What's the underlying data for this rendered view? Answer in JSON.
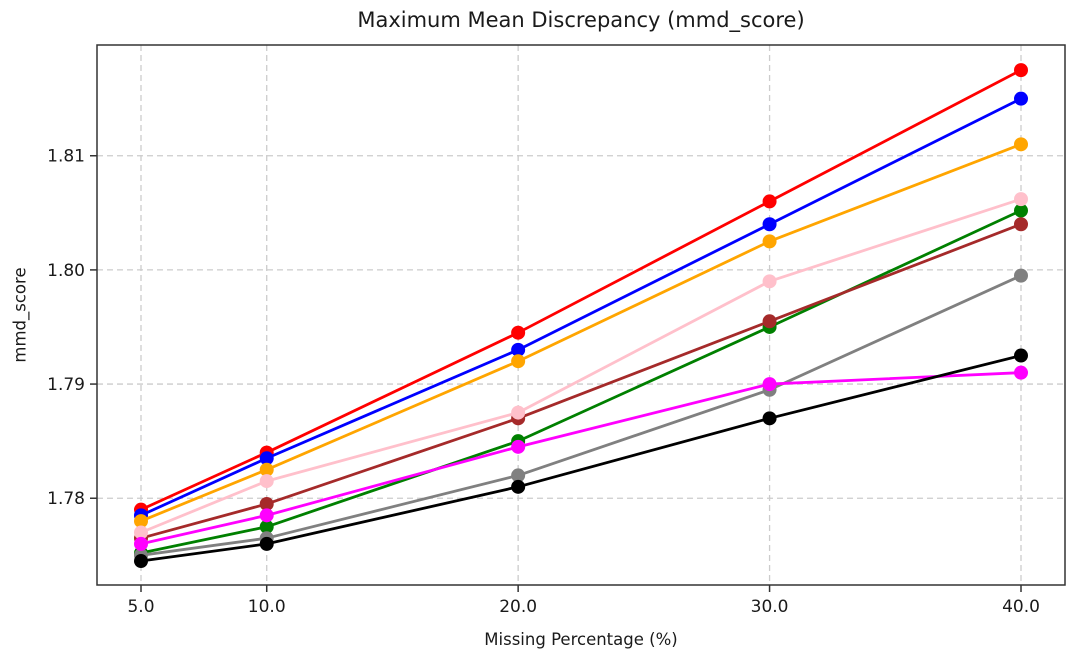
{
  "chart_data": {
    "type": "line",
    "title": "Maximum Mean Discrepancy (mmd_score)",
    "xlabel": "Missing Percentage (%)",
    "ylabel": "mmd_score",
    "x": [
      5.0,
      10.0,
      20.0,
      30.0,
      40.0
    ],
    "xtick_labels": [
      "5.0",
      "10.0",
      "20.0",
      "30.0",
      "40.0"
    ],
    "ytick_values": [
      1.78,
      1.79,
      1.8,
      1.81
    ],
    "ytick_labels": [
      "1.78",
      "1.79",
      "1.80",
      "1.81"
    ],
    "xlim": [
      3.25,
      41.75
    ],
    "ylim": [
      1.7724,
      1.8197
    ],
    "grid": true,
    "grid_style": "dashed",
    "grid_color": "#cccccc",
    "spine_color": "#333333",
    "legend": false,
    "marker": "circle",
    "series": [
      {
        "name": "red",
        "color": "#ff0000",
        "values": [
          1.779,
          1.784,
          1.7945,
          1.806,
          1.8175
        ]
      },
      {
        "name": "blue",
        "color": "#0000ff",
        "values": [
          1.7785,
          1.7835,
          1.793,
          1.804,
          1.815
        ]
      },
      {
        "name": "orange",
        "color": "#ffa500",
        "values": [
          1.778,
          1.7825,
          1.792,
          1.8025,
          1.811
        ]
      },
      {
        "name": "green",
        "color": "#008000",
        "values": [
          1.7752,
          1.7775,
          1.785,
          1.795,
          1.8052
        ]
      },
      {
        "name": "brown",
        "color": "#a52a2a",
        "values": [
          1.7765,
          1.7795,
          1.787,
          1.7955,
          1.804
        ]
      },
      {
        "name": "pink",
        "color": "#ffc0cb",
        "values": [
          1.777,
          1.7815,
          1.7875,
          1.799,
          1.8062
        ]
      },
      {
        "name": "gray",
        "color": "#808080",
        "values": [
          1.775,
          1.7765,
          1.782,
          1.7895,
          1.7995
        ]
      },
      {
        "name": "magenta",
        "color": "#ff00ff",
        "values": [
          1.776,
          1.7785,
          1.7845,
          1.79,
          1.791
        ]
      },
      {
        "name": "black",
        "color": "#000000",
        "values": [
          1.7745,
          1.776,
          1.781,
          1.787,
          1.7925
        ]
      }
    ]
  }
}
